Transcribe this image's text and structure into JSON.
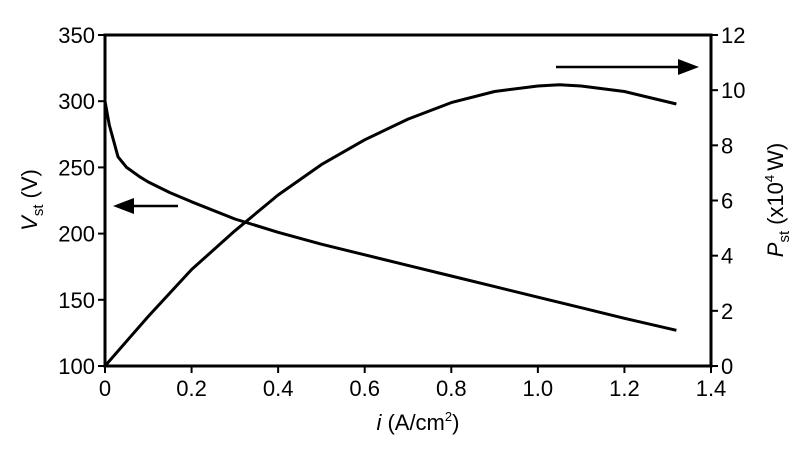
{
  "chart_data": {
    "type": "line",
    "x_axis": {
      "label_italic": "i",
      "label_rest": "(A/cm",
      "label_sup": "2",
      "label_close": ")",
      "lim": [
        0,
        1.4
      ],
      "ticks": [
        0,
        0.2,
        0.4,
        0.6,
        0.8,
        1.0,
        1.2,
        1.4
      ],
      "tick_labels": [
        "0",
        "0.2",
        "0.4",
        "0.6",
        "0.8",
        "1.0",
        "1.2",
        "1.4"
      ]
    },
    "y_left": {
      "label_main": "V",
      "label_sub": "st",
      "label_rest": "(V)",
      "lim": [
        100,
        350
      ],
      "ticks": [
        100,
        150,
        200,
        250,
        300,
        350
      ],
      "tick_labels": [
        "100",
        "150",
        "200",
        "250",
        "300",
        "350"
      ]
    },
    "y_right": {
      "label_main": "P",
      "label_sub": "st",
      "label_pre": "(x10",
      "label_sup": "4",
      "label_post": "W)",
      "lim": [
        0,
        12
      ],
      "ticks": [
        0,
        2,
        4,
        6,
        8,
        10,
        12
      ],
      "tick_labels": [
        "0",
        "2",
        "4",
        "6",
        "8",
        "10",
        "12"
      ]
    },
    "series": [
      {
        "axis": "left",
        "x": [
          0,
          0.01,
          0.03,
          0.05,
          0.08,
          0.1,
          0.15,
          0.2,
          0.3,
          0.4,
          0.5,
          0.6,
          0.7,
          0.8,
          0.9,
          1.0,
          1.1,
          1.2,
          1.32
        ],
        "y": [
          300,
          282,
          258,
          250,
          243,
          239,
          231,
          224,
          211,
          201,
          192,
          184,
          176,
          168,
          160,
          152,
          144,
          136,
          127
        ]
      },
      {
        "axis": "right",
        "x": [
          0,
          0.05,
          0.1,
          0.2,
          0.3,
          0.4,
          0.5,
          0.6,
          0.7,
          0.8,
          0.9,
          1.0,
          1.05,
          1.1,
          1.2,
          1.32
        ],
        "y": [
          0,
          0.9,
          1.8,
          3.5,
          4.9,
          6.2,
          7.3,
          8.2,
          8.95,
          9.55,
          9.95,
          10.15,
          10.2,
          10.15,
          9.95,
          9.5
        ]
      }
    ],
    "annotations": [
      {
        "type": "arrow",
        "direction": "left",
        "points_to": "left axis"
      },
      {
        "type": "arrow",
        "direction": "right",
        "points_to": "right axis"
      }
    ]
  }
}
